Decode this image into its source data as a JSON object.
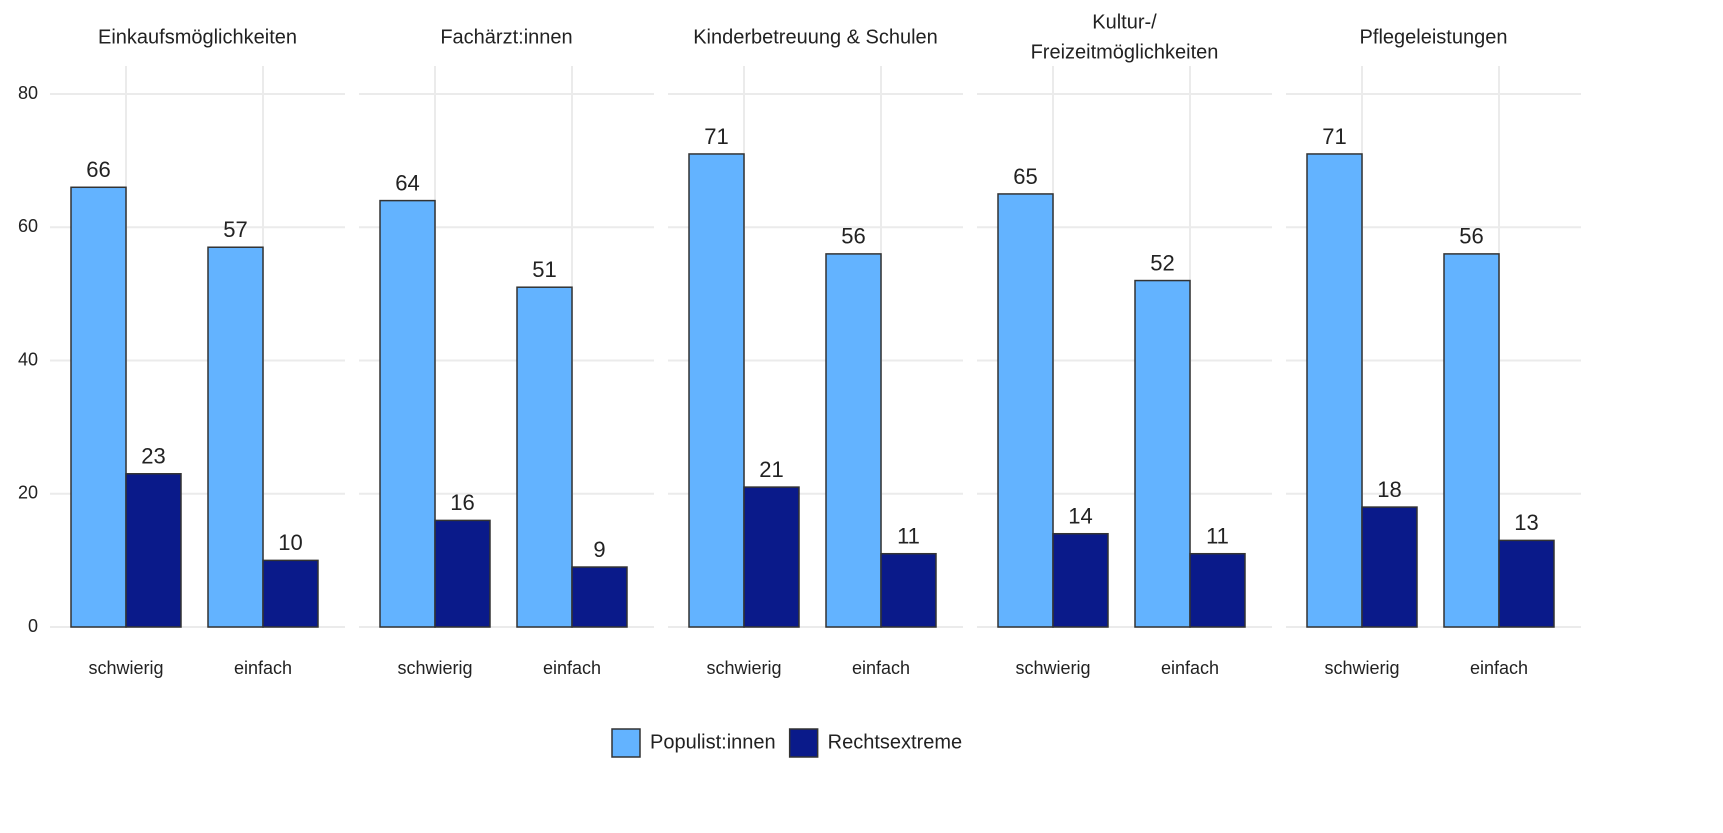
{
  "chart_data": {
    "type": "bar",
    "categories": [
      "schwierig",
      "einfach"
    ],
    "series": [
      {
        "name": "Populist:innen",
        "color": "#63b3ff"
      },
      {
        "name": "Rechtsextreme",
        "color": "#0a1a8a"
      }
    ],
    "facets": [
      {
        "title": [
          "Einkaufsmöglichkeiten"
        ],
        "values": [
          [
            66,
            57
          ],
          [
            23,
            10
          ]
        ]
      },
      {
        "title": [
          "Fachärzt:innen"
        ],
        "values": [
          [
            64,
            51
          ],
          [
            16,
            9
          ]
        ]
      },
      {
        "title": [
          "Kinderbetreuung & Schulen"
        ],
        "values": [
          [
            71,
            56
          ],
          [
            21,
            11
          ]
        ]
      },
      {
        "title": [
          "Kultur-/",
          "Freizeitmöglichkeiten"
        ],
        "values": [
          [
            65,
            52
          ],
          [
            14,
            11
          ]
        ]
      },
      {
        "title": [
          "Pflegeleistungen"
        ],
        "values": [
          [
            71,
            56
          ],
          [
            18,
            13
          ]
        ]
      }
    ],
    "ylim": [
      0,
      80
    ],
    "yticks": [
      0,
      20,
      40,
      60,
      80
    ],
    "grid": true
  }
}
